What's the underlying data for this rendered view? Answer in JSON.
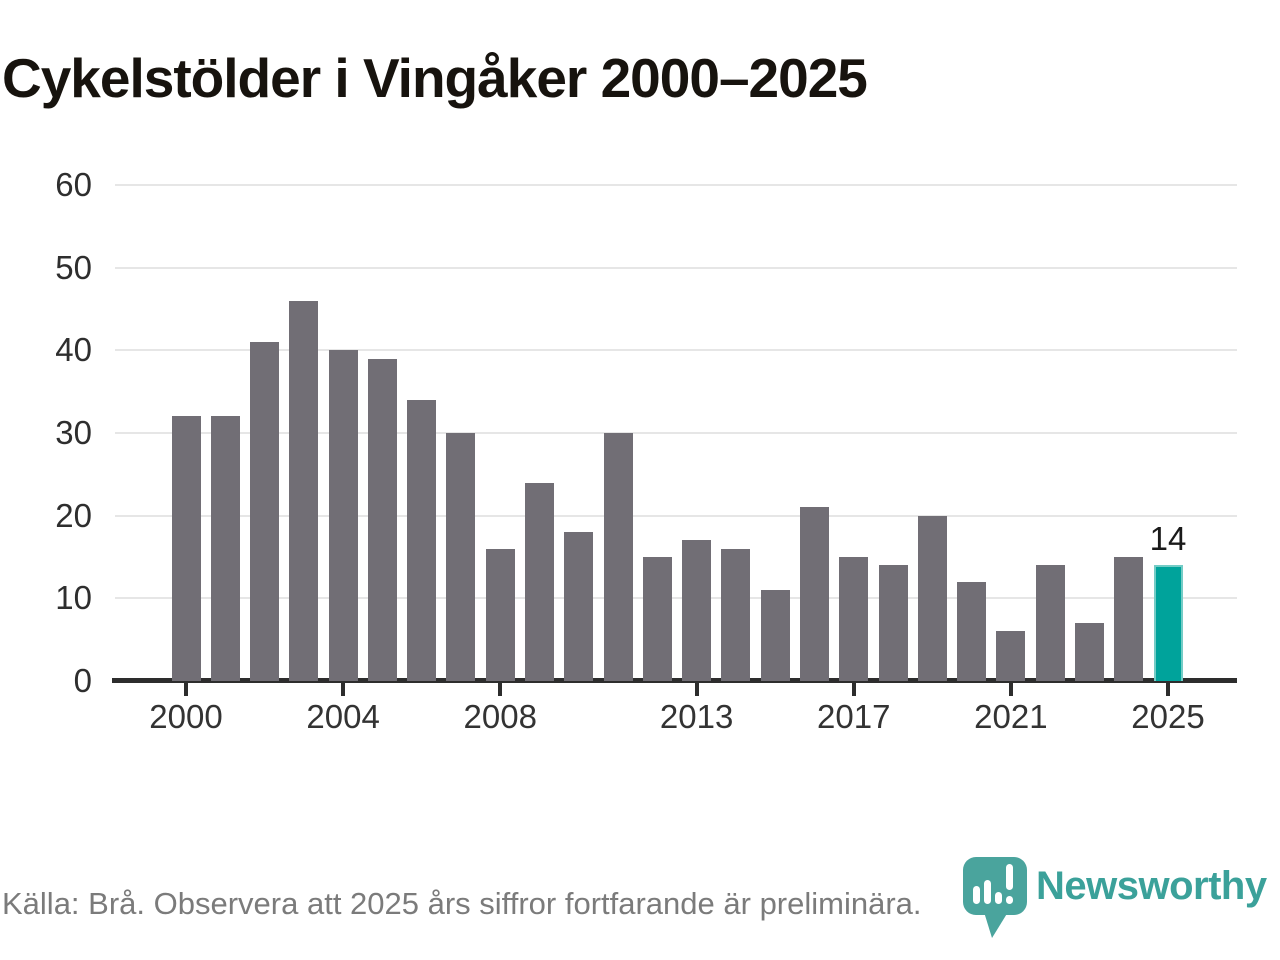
{
  "title": "Cykelstölder i Vingåker 2000–2025",
  "chart_data": {
    "type": "bar",
    "x": [
      2000,
      2001,
      2002,
      2003,
      2004,
      2005,
      2006,
      2007,
      2008,
      2009,
      2010,
      2011,
      2012,
      2013,
      2014,
      2015,
      2016,
      2017,
      2018,
      2019,
      2020,
      2021,
      2022,
      2023,
      2024,
      2025
    ],
    "values": [
      32,
      32,
      41,
      46,
      40,
      39,
      34,
      30,
      16,
      24,
      18,
      30,
      15,
      17,
      16,
      11,
      21,
      15,
      14,
      20,
      12,
      6,
      14,
      7,
      15,
      14
    ],
    "title": "Cykelstölder i Vingåker 2000–2025",
    "xlabel": "",
    "ylabel": "",
    "ylim": [
      0,
      60
    ],
    "yticks": [
      0,
      10,
      20,
      30,
      40,
      50,
      60
    ],
    "xticks": [
      2000,
      2004,
      2008,
      2013,
      2017,
      2021,
      2025
    ],
    "grid": true,
    "legend_position": "none",
    "bar_color": "#716e75",
    "highlight_year": 2025,
    "highlight_color": "#00a39b",
    "highlight_value_label": "14"
  },
  "footer": {
    "source_note": "Källa: Brå. Observera att 2025 års siffror fortfarande är preliminära."
  },
  "branding": {
    "logo_text": "Newsworthy",
    "logo_color": "#3ba19a",
    "logo_icon": "newsworthy-speech-bubble-chart-icon"
  }
}
